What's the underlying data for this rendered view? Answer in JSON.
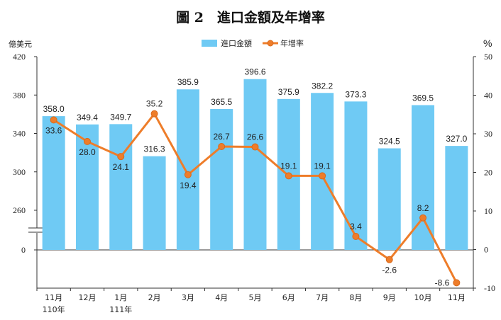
{
  "chart_data": {
    "type": "bar",
    "title": "圖 2　進口金額及年增率",
    "left_axis_unit": "億美元",
    "right_axis_unit": "%",
    "left_ticks": [
      "420",
      "380",
      "340",
      "300",
      "260",
      "0"
    ],
    "right_ticks": [
      "50",
      "40",
      "30",
      "20",
      "10",
      "0",
      "-10"
    ],
    "ylim_left": [
      0,
      420
    ],
    "ylim_right": [
      -10,
      50
    ],
    "axis_break": "between 0 and 260 on left axis",
    "legend": [
      "進口金額",
      "年增率"
    ],
    "categories": [
      "11月",
      "12月",
      "1月",
      "2月",
      "3月",
      "4月",
      "5月",
      "6月",
      "7月",
      "8月",
      "9月",
      "10月",
      "11月"
    ],
    "year_labels": [
      {
        "index": 0,
        "text": "110年"
      },
      {
        "index": 2,
        "text": "111年"
      }
    ],
    "series": [
      {
        "name": "進口金額",
        "kind": "bar",
        "axis": "left",
        "values": [
          358.0,
          349.4,
          349.7,
          316.3,
          385.9,
          365.5,
          396.6,
          375.9,
          382.2,
          373.3,
          324.5,
          369.5,
          327.0
        ],
        "labels": [
          "358.0",
          "349.4",
          "349.7",
          "316.3",
          "385.9",
          "365.5",
          "396.6",
          "375.9",
          "382.2",
          "373.3",
          "324.5",
          "369.5",
          "327.0"
        ]
      },
      {
        "name": "年增率",
        "kind": "line",
        "axis": "right",
        "values": [
          33.6,
          28.0,
          24.1,
          35.2,
          19.4,
          26.7,
          26.6,
          19.1,
          19.1,
          3.4,
          -2.6,
          8.2,
          -8.6
        ],
        "labels": [
          "33.6",
          "28.0",
          "24.1",
          "35.2",
          "19.4",
          "26.7",
          "26.6",
          "19.1",
          "19.1",
          "3.4",
          "-2.6",
          "8.2",
          "-8.6"
        ]
      }
    ],
    "colors": {
      "bar": "#6fcaf4",
      "line": "#ee7d2a",
      "marker_edge": "#d9691c",
      "axis": "#333333"
    }
  }
}
